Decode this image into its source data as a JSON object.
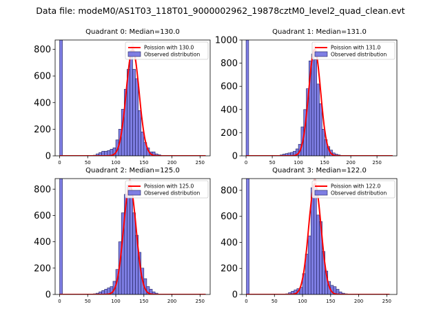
{
  "figure": {
    "suptitle": "Data file: modeM0/AS1T03_118T01_9000002962_19878cztM0_level2_quad_clean.evt"
  },
  "colors": {
    "hist_fill": "#7070e0",
    "hist_edge": "#1e1e5a",
    "poisson_line": "#ff0000",
    "poisson_band": "#f08080"
  },
  "chart_data": [
    {
      "type": "bar",
      "title": "Quadrant 0: Median=130.0",
      "median": 130.0,
      "legend": {
        "line_label": "Poission with 130.0",
        "hist_label": "Observed distribution",
        "placement": "top-right"
      },
      "xlim": [
        -8,
        268
      ],
      "ylim": [
        0,
        870
      ],
      "xticks": [
        0,
        50,
        100,
        150,
        200,
        250
      ],
      "yticks": [
        0,
        200,
        400,
        600,
        800
      ],
      "bin_width": 5,
      "bins": [
        {
          "x0": 0,
          "y": 870
        },
        {
          "x0": 60,
          "y": 5
        },
        {
          "x0": 65,
          "y": 15
        },
        {
          "x0": 70,
          "y": 25
        },
        {
          "x0": 75,
          "y": 35
        },
        {
          "x0": 80,
          "y": 35
        },
        {
          "x0": 85,
          "y": 40
        },
        {
          "x0": 90,
          "y": 50
        },
        {
          "x0": 95,
          "y": 60
        },
        {
          "x0": 100,
          "y": 120
        },
        {
          "x0": 105,
          "y": 200
        },
        {
          "x0": 110,
          "y": 350
        },
        {
          "x0": 115,
          "y": 500
        },
        {
          "x0": 120,
          "y": 650
        },
        {
          "x0": 125,
          "y": 790
        },
        {
          "x0": 130,
          "y": 650
        },
        {
          "x0": 135,
          "y": 580
        },
        {
          "x0": 140,
          "y": 340
        },
        {
          "x0": 145,
          "y": 180
        },
        {
          "x0": 150,
          "y": 100
        },
        {
          "x0": 155,
          "y": 60
        },
        {
          "x0": 160,
          "y": 30
        },
        {
          "x0": 165,
          "y": 30
        },
        {
          "x0": 170,
          "y": 15
        },
        {
          "x0": 175,
          "y": 8
        }
      ],
      "curve": {
        "x_min": 0,
        "x_max": 260,
        "peak": 800,
        "sigma": 11.4,
        "band_halfwidth": 30
      }
    },
    {
      "type": "bar",
      "title": "Quadrant 1: Median=131.0",
      "median": 131.0,
      "legend": {
        "line_label": "Poission with 131.0",
        "hist_label": "Observed distribution",
        "placement": "top-right"
      },
      "xlim": [
        -8,
        288
      ],
      "ylim": [
        0,
        1000
      ],
      "xticks": [
        0,
        50,
        100,
        150,
        200,
        250
      ],
      "yticks": [
        0,
        200,
        400,
        600,
        800,
        1000
      ],
      "bin_width": 5,
      "bins": [
        {
          "x0": 0,
          "y": 1000
        },
        {
          "x0": 65,
          "y": 8
        },
        {
          "x0": 70,
          "y": 15
        },
        {
          "x0": 75,
          "y": 20
        },
        {
          "x0": 80,
          "y": 25
        },
        {
          "x0": 85,
          "y": 30
        },
        {
          "x0": 90,
          "y": 40
        },
        {
          "x0": 95,
          "y": 60
        },
        {
          "x0": 100,
          "y": 100
        },
        {
          "x0": 105,
          "y": 250
        },
        {
          "x0": 110,
          "y": 400
        },
        {
          "x0": 115,
          "y": 580
        },
        {
          "x0": 120,
          "y": 820
        },
        {
          "x0": 125,
          "y": 880
        },
        {
          "x0": 130,
          "y": 830
        },
        {
          "x0": 135,
          "y": 620
        },
        {
          "x0": 140,
          "y": 450
        },
        {
          "x0": 145,
          "y": 230
        },
        {
          "x0": 150,
          "y": 140
        },
        {
          "x0": 155,
          "y": 80
        },
        {
          "x0": 160,
          "y": 50
        },
        {
          "x0": 165,
          "y": 25
        },
        {
          "x0": 170,
          "y": 15
        },
        {
          "x0": 175,
          "y": 8
        }
      ],
      "curve": {
        "x_min": 0,
        "x_max": 280,
        "peak": 920,
        "sigma": 11.4,
        "band_halfwidth": 30
      }
    },
    {
      "type": "bar",
      "title": "Quadrant 2: Median=125.0",
      "median": 125.0,
      "legend": {
        "line_label": "Poission with 125.0",
        "hist_label": "Observed distribution",
        "placement": "top-right"
      },
      "xlim": [
        -8,
        268
      ],
      "ylim": [
        0,
        880
      ],
      "xticks": [
        0,
        50,
        100,
        150,
        200,
        250
      ],
      "yticks": [
        0,
        200,
        400,
        600,
        800
      ],
      "bin_width": 5,
      "bins": [
        {
          "x0": 0,
          "y": 880
        },
        {
          "x0": 60,
          "y": 5
        },
        {
          "x0": 65,
          "y": 10
        },
        {
          "x0": 70,
          "y": 20
        },
        {
          "x0": 75,
          "y": 30
        },
        {
          "x0": 80,
          "y": 40
        },
        {
          "x0": 85,
          "y": 50
        },
        {
          "x0": 90,
          "y": 60
        },
        {
          "x0": 95,
          "y": 100
        },
        {
          "x0": 100,
          "y": 190
        },
        {
          "x0": 105,
          "y": 400
        },
        {
          "x0": 110,
          "y": 620
        },
        {
          "x0": 115,
          "y": 760
        },
        {
          "x0": 120,
          "y": 830
        },
        {
          "x0": 125,
          "y": 760
        },
        {
          "x0": 130,
          "y": 620
        },
        {
          "x0": 135,
          "y": 450
        },
        {
          "x0": 140,
          "y": 320
        },
        {
          "x0": 145,
          "y": 200
        },
        {
          "x0": 150,
          "y": 120
        },
        {
          "x0": 155,
          "y": 60
        },
        {
          "x0": 160,
          "y": 40
        },
        {
          "x0": 165,
          "y": 20
        },
        {
          "x0": 170,
          "y": 10
        }
      ],
      "curve": {
        "x_min": 0,
        "x_max": 260,
        "peak": 830,
        "sigma": 11.2,
        "band_halfwidth": 30
      }
    },
    {
      "type": "bar",
      "title": "Quadrant 3: Median=122.0",
      "median": 122.0,
      "legend": {
        "line_label": "Poission with 122.0",
        "hist_label": "Observed distribution",
        "placement": "top-right"
      },
      "xlim": [
        -8,
        268
      ],
      "ylim": [
        0,
        890
      ],
      "xticks": [
        0,
        50,
        100,
        150,
        200,
        250
      ],
      "yticks": [
        0,
        200,
        400,
        600,
        800
      ],
      "bin_width": 5,
      "bins": [
        {
          "x0": 0,
          "y": 890
        },
        {
          "x0": 70,
          "y": 5
        },
        {
          "x0": 75,
          "y": 15
        },
        {
          "x0": 80,
          "y": 25
        },
        {
          "x0": 85,
          "y": 35
        },
        {
          "x0": 90,
          "y": 45
        },
        {
          "x0": 95,
          "y": 55
        },
        {
          "x0": 100,
          "y": 160
        },
        {
          "x0": 105,
          "y": 310
        },
        {
          "x0": 110,
          "y": 450
        },
        {
          "x0": 115,
          "y": 820
        },
        {
          "x0": 120,
          "y": 830
        },
        {
          "x0": 125,
          "y": 610
        },
        {
          "x0": 130,
          "y": 560
        },
        {
          "x0": 135,
          "y": 330
        },
        {
          "x0": 140,
          "y": 180
        },
        {
          "x0": 145,
          "y": 100
        },
        {
          "x0": 150,
          "y": 70
        },
        {
          "x0": 155,
          "y": 60
        },
        {
          "x0": 160,
          "y": 40
        },
        {
          "x0": 165,
          "y": 20
        },
        {
          "x0": 170,
          "y": 10
        },
        {
          "x0": 175,
          "y": 5
        }
      ],
      "curve": {
        "x_min": 0,
        "x_max": 255,
        "peak": 850,
        "sigma": 11.1,
        "band_halfwidth": 30
      }
    }
  ]
}
